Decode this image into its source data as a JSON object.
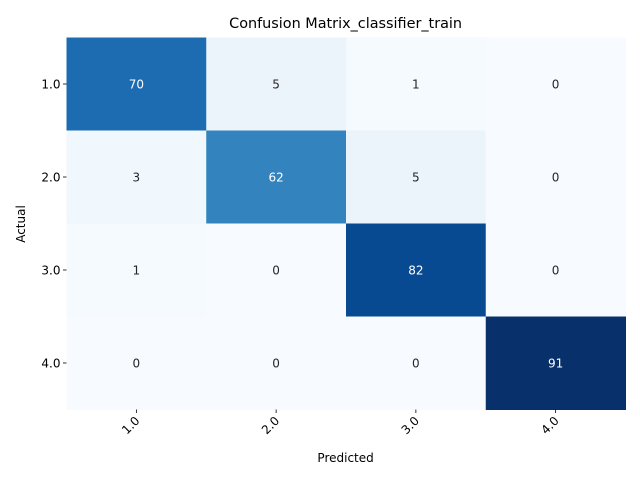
{
  "chart_data": {
    "type": "heatmap",
    "title": "Confusion Matrix_classifier_train",
    "xlabel": "Predicted",
    "ylabel": "Actual",
    "x_categories": [
      "1.0",
      "2.0",
      "3.0",
      "4.0"
    ],
    "y_categories": [
      "1.0",
      "2.0",
      "3.0",
      "4.0"
    ],
    "values": [
      [
        70,
        5,
        1,
        0
      ],
      [
        3,
        62,
        5,
        0
      ],
      [
        1,
        0,
        82,
        0
      ],
      [
        0,
        0,
        0,
        91
      ]
    ],
    "colormap": "Blues",
    "color_low": "#f7fbff",
    "color_high": "#08306b",
    "vmin": 0,
    "vmax": 91,
    "colorbar": false,
    "x_tick_rotation_deg": 45
  }
}
